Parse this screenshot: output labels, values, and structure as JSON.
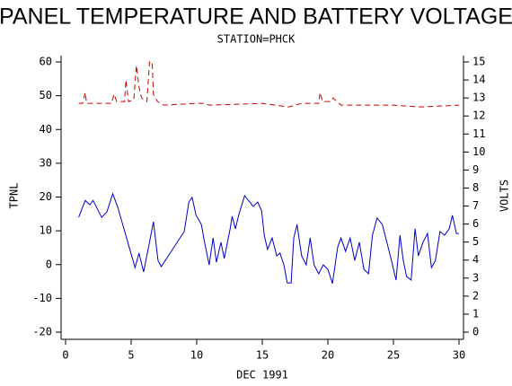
{
  "chart_data": {
    "type": "line",
    "title": "PANEL TEMPERATURE AND BATTERY VOLTAGE",
    "subtitle": "STATION=PHCK",
    "x_label": "DEC 1991",
    "y_label": "TPNL",
    "y2_label": "VOLTS",
    "xlim": [
      0,
      30
    ],
    "xticks": [
      0,
      5,
      10,
      15,
      20,
      25,
      30
    ],
    "ylim": [
      -20,
      60
    ],
    "yticks": [
      -20,
      -10,
      0,
      10,
      20,
      30,
      40,
      50,
      60
    ],
    "y2lim": [
      0,
      15
    ],
    "y2ticks": [
      0,
      1,
      2,
      3,
      4,
      5,
      6,
      7,
      8,
      9,
      10,
      11,
      12,
      13,
      14,
      15
    ],
    "series": [
      {
        "color": "#0000cc",
        "dash": false,
        "x": [
          1.0,
          1.5,
          1.85,
          2.1,
          2.4,
          2.75,
          3.15,
          3.6,
          4.0,
          4.45,
          4.9,
          5.3,
          5.6,
          5.95,
          6.4,
          6.7,
          7.05,
          7.3,
          9.05,
          9.4,
          9.65,
          9.95,
          10.35,
          10.6,
          10.95,
          11.25,
          11.5,
          11.85,
          12.1,
          12.55,
          12.7,
          12.95,
          13.2,
          13.65,
          14.05,
          14.3,
          14.65,
          14.95,
          15.15,
          15.4,
          15.75,
          16.1,
          16.35,
          16.65,
          16.9,
          17.2,
          17.4,
          17.65,
          18.0,
          18.35,
          18.65,
          18.95,
          19.3,
          19.65,
          20.0,
          20.35,
          20.75,
          21.0,
          21.35,
          21.7,
          22.05,
          22.4,
          22.75,
          23.1,
          23.4,
          23.75,
          24.15,
          24.5,
          24.85,
          25.2,
          25.5,
          25.75,
          26.0,
          26.35,
          26.65,
          26.9,
          27.25,
          27.6,
          27.9,
          28.2,
          28.55,
          28.9,
          29.25,
          29.5,
          29.8,
          30.0
        ],
        "values": [
          14,
          19,
          17.7,
          19,
          16.7,
          14,
          15.6,
          21,
          16.7,
          10.6,
          4.5,
          -0.9,
          3.4,
          -2.2,
          6.6,
          12.7,
          1.2,
          -0.6,
          9.8,
          18.5,
          19.9,
          14.6,
          11.9,
          6.6,
          -0.1,
          7.9,
          0.7,
          6.6,
          1.8,
          10.6,
          14.3,
          10.6,
          14.6,
          20.4,
          18.5,
          17.2,
          18.5,
          15.9,
          8.7,
          4.5,
          7.9,
          2.6,
          3.4,
          -0.1,
          -5.4,
          -5.4,
          7.9,
          11.9,
          2.6,
          -0.1,
          7.9,
          -0.1,
          -2.7,
          -0.1,
          -1.4,
          -5.6,
          5.2,
          7.9,
          3.9,
          7.9,
          1.2,
          6.6,
          -1.4,
          -2.7,
          8.7,
          13.8,
          11.9,
          6.6,
          1.2,
          -4.6,
          8.7,
          1.2,
          -3.5,
          -4.6,
          10.6,
          2.6,
          6.6,
          9.2,
          -0.9,
          1.2,
          9.8,
          8.7,
          10.6,
          14.6,
          9.2,
          9.2
        ]
      },
      {
        "color": "#cc0000",
        "dash": true,
        "axis": "y2",
        "x": [
          1.0,
          1.3,
          1.5,
          1.6,
          3.5,
          3.7,
          3.9,
          4.5,
          4.6,
          4.8,
          5.2,
          5.4,
          5.6,
          5.8,
          6.2,
          6.4,
          6.6,
          6.7,
          7.0,
          7.5,
          10.0,
          10.5,
          11.0,
          15.0,
          17.0,
          18.0,
          19.3,
          19.4,
          19.6,
          20.2,
          20.4,
          21.0,
          25.0,
          27.0,
          30.0
        ],
        "values": [
          12.7,
          12.7,
          13.3,
          12.7,
          12.7,
          13.2,
          12.8,
          12.8,
          14.0,
          12.8,
          12.9,
          14.8,
          13.6,
          13.0,
          12.8,
          15.0,
          15.0,
          13.2,
          12.8,
          12.6,
          12.7,
          12.7,
          12.6,
          12.7,
          12.5,
          12.7,
          12.7,
          13.3,
          12.8,
          12.8,
          13.0,
          12.6,
          12.6,
          12.5,
          12.6
        ]
      }
    ]
  }
}
